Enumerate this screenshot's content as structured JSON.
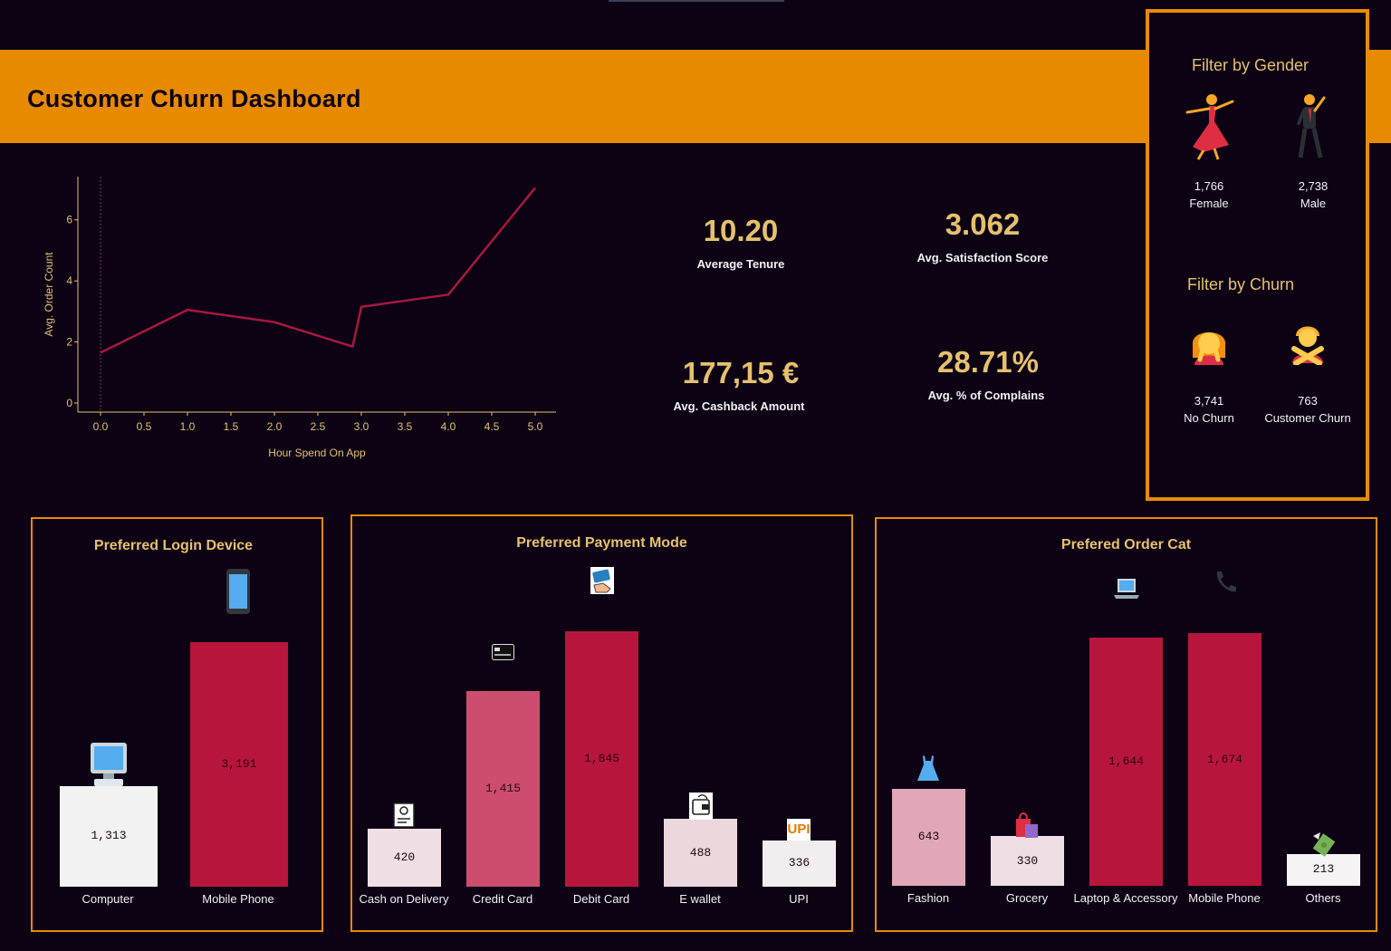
{
  "header": {
    "title": "Customer Churn Dashboard"
  },
  "line_chart": {
    "chart_data": {
      "type": "line",
      "xlabel": "Hour Spend On App",
      "ylabel": "Avg. Order Count",
      "x": [
        0.0,
        1.0,
        2.0,
        2.9,
        3.0,
        4.0,
        5.0
      ],
      "y": [
        1.65,
        3.05,
        2.65,
        1.85,
        3.15,
        3.55,
        7.05
      ],
      "xlim": [
        0.0,
        5.0
      ],
      "ylim": [
        0,
        7
      ],
      "xticks": [
        "0.0",
        "0.5",
        "1.0",
        "1.5",
        "2.0",
        "2.5",
        "3.0",
        "3.5",
        "4.0",
        "4.5",
        "5.0"
      ],
      "yticks": [
        "0",
        "2",
        "4",
        "6"
      ],
      "line_color": "#a8173c"
    }
  },
  "kpis": [
    {
      "value": "10.20",
      "label": "Average Tenure"
    },
    {
      "value": "3.062",
      "label": "Avg. Satisfaction Score"
    },
    {
      "value": "177,15 €",
      "label": "Avg. Cashback Amount"
    },
    {
      "value": "28.71%",
      "label": "Avg. % of Complains"
    }
  ],
  "filters": {
    "gender": {
      "title": "Filter by Gender",
      "items": [
        {
          "count": "1,766",
          "label": "Female",
          "icon": "dancing-woman-icon"
        },
        {
          "count": "2,738",
          "label": "Male",
          "icon": "dancing-man-icon"
        }
      ]
    },
    "churn": {
      "title": "Filter by Churn",
      "items": [
        {
          "count": "3,741",
          "label": "No Churn",
          "icon": "face-palm-person-icon"
        },
        {
          "count": "763",
          "label": "Customer Churn",
          "icon": "gesturing-no-person-icon"
        }
      ]
    }
  },
  "login_device": {
    "title": "Preferred Login Device",
    "chart_data": {
      "type": "bar",
      "categories": [
        "Computer",
        "Mobile Phone"
      ],
      "values": [
        1313,
        3191
      ],
      "labels": [
        "1,313",
        "3,191"
      ],
      "colors": [
        "#f2f2f2",
        "#b8153d"
      ]
    }
  },
  "payment_mode": {
    "title": "Preferred Payment Mode",
    "chart_data": {
      "type": "bar",
      "categories": [
        "Cash on Delivery",
        "Credit Card",
        "Debit Card",
        "E wallet",
        "UPI"
      ],
      "values": [
        420,
        1415,
        1845,
        488,
        336
      ],
      "labels": [
        "420",
        "1,415",
        "1,845",
        "488",
        "336"
      ],
      "colors": [
        "#f0e0e5",
        "#cc4d6d",
        "#b8153d",
        "#ecd7dd",
        "#f2eef0"
      ],
      "icon_text": "UPI"
    }
  },
  "order_cat": {
    "title": "Prefered Order Cat",
    "chart_data": {
      "type": "bar",
      "categories": [
        "Fashion",
        "Grocery",
        "Laptop & Accessory",
        "Mobile Phone",
        "Others"
      ],
      "values": [
        643,
        330,
        1644,
        1674,
        213
      ],
      "labels": [
        "643",
        "330",
        "1,644",
        "1,674",
        "213"
      ],
      "colors": [
        "#e0a7b6",
        "#efdee3",
        "#b8153d",
        "#b8153d",
        "#f5f3f4"
      ]
    }
  }
}
